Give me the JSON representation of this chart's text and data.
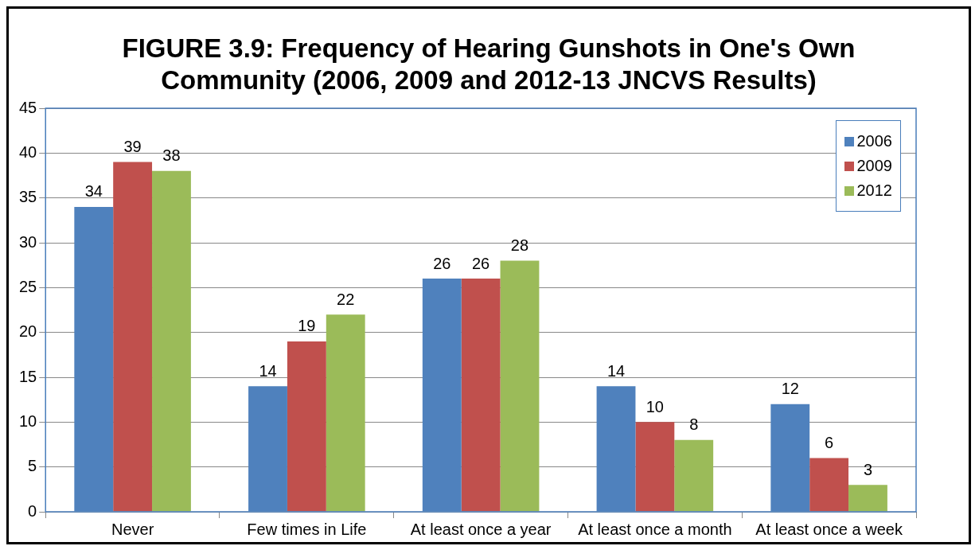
{
  "chart_data": {
    "type": "bar",
    "title": "FIGURE 3.9: Frequency of Hearing Gunshots in One's Own Community (2006, 2009 and 2012-13 JNCVS Results)",
    "categories": [
      "Never",
      "Few times in Life",
      "At least once a year",
      "At least once a month",
      "At least once a week"
    ],
    "series": [
      {
        "name": "2006",
        "color": "#4f81bd",
        "values": [
          34,
          14,
          26,
          14,
          12
        ]
      },
      {
        "name": "2009",
        "color": "#c0504d",
        "values": [
          39,
          19,
          26,
          10,
          6
        ]
      },
      {
        "name": "2012",
        "color": "#9bbb59",
        "values": [
          38,
          22,
          28,
          8,
          3
        ]
      }
    ],
    "ylim": [
      0,
      45
    ],
    "yticks": [
      0,
      5,
      10,
      15,
      20,
      25,
      30,
      35,
      40,
      45
    ],
    "grid": "y",
    "legend": "top right",
    "data_labels": true
  }
}
